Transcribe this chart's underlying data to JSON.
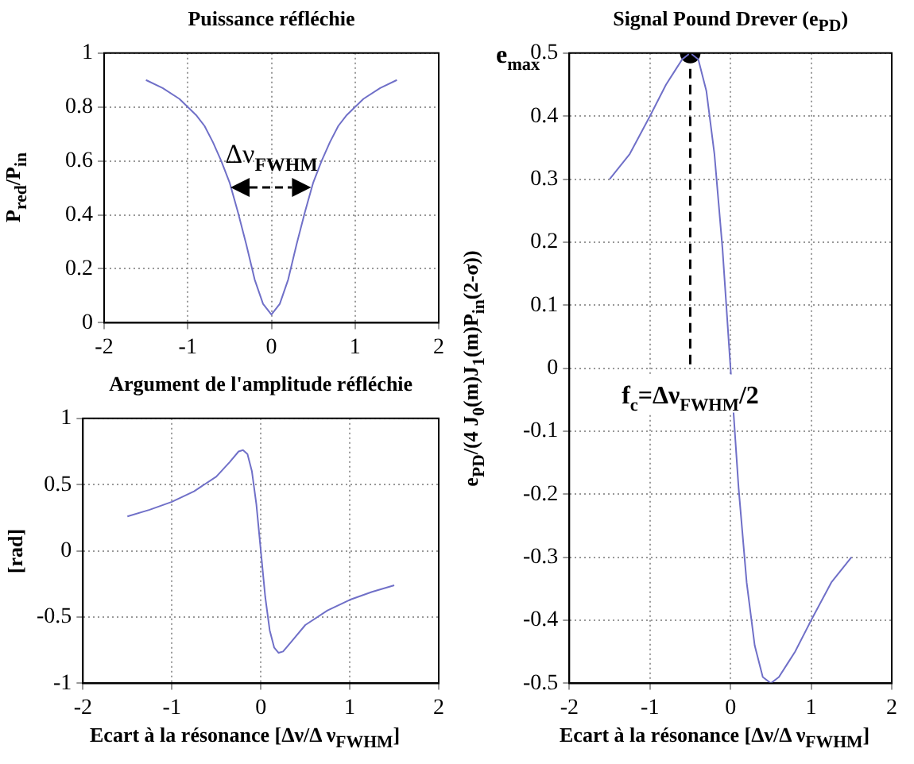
{
  "chart_data": [
    {
      "type": "line",
      "title": "Puissance réfléchie",
      "ylabel": "P$_{red}$/P$_{in}$",
      "x": [
        -1.5,
        -1.3,
        -1.1,
        -0.9,
        -0.8,
        -0.7,
        -0.6,
        -0.5,
        -0.4,
        -0.3,
        -0.2,
        -0.1,
        0,
        0.1,
        0.2,
        0.3,
        0.4,
        0.5,
        0.6,
        0.7,
        0.8,
        0.9,
        1.1,
        1.3,
        1.5
      ],
      "series": [
        {
          "color": "#7070c8",
          "values": [
            0.9,
            0.87,
            0.83,
            0.77,
            0.73,
            0.67,
            0.6,
            0.52,
            0.41,
            0.29,
            0.16,
            0.07,
            0.03,
            0.07,
            0.16,
            0.29,
            0.41,
            0.52,
            0.6,
            0.67,
            0.73,
            0.77,
            0.83,
            0.87,
            0.9
          ]
        }
      ],
      "xlim": [
        -2,
        2
      ],
      "xticks": [
        -2,
        -1,
        0,
        1,
        2
      ],
      "ylim": [
        0,
        1
      ],
      "yticks": [
        0,
        0.2,
        0.4,
        0.6,
        0.8,
        1
      ],
      "grid": true,
      "annotations": [
        "Δν$_{FWHM}$"
      ]
    },
    {
      "type": "line",
      "title": "Argument de l'amplitude réfléchie",
      "xlabel": "Ecart à la résonance [Δν/Δ ν$_{FWHM}$]",
      "ylabel": "[rad]",
      "x": [
        -1.5,
        -1.25,
        -1,
        -0.75,
        -0.5,
        -0.35,
        -0.25,
        -0.2,
        -0.15,
        -0.1,
        -0.05,
        0,
        0.05,
        0.1,
        0.15,
        0.2,
        0.25,
        0.35,
        0.5,
        0.75,
        1,
        1.25,
        1.5
      ],
      "series": [
        {
          "color": "#7070c8",
          "values": [
            0.26,
            0.31,
            0.37,
            0.45,
            0.56,
            0.67,
            0.75,
            0.76,
            0.73,
            0.6,
            0.35,
            0,
            -0.35,
            -0.6,
            -0.73,
            -0.77,
            -0.76,
            -0.68,
            -0.56,
            -0.45,
            -0.37,
            -0.31,
            -0.26
          ]
        }
      ],
      "xlim": [
        -2,
        2
      ],
      "xticks": [
        -2,
        -1,
        0,
        1,
        2
      ],
      "ylim": [
        -1,
        1
      ],
      "yticks": [
        -1,
        -0.5,
        0,
        0.5,
        1
      ],
      "grid": true
    },
    {
      "type": "line",
      "title": "Signal Pound Drever (e$_{PD}$)",
      "xlabel": "Ecart à la résonance [Δν/Δ ν$_{FWHM}$]",
      "ylabel": "e$_{PD}$/(4 J$_{0}$(m)J$_{1}$(m)P$_{in}$(2-σ))",
      "x": [
        -1.5,
        -1.25,
        -1,
        -0.8,
        -0.7,
        -0.6,
        -0.5,
        -0.4,
        -0.3,
        -0.2,
        -0.1,
        0,
        0.1,
        0.2,
        0.3,
        0.4,
        0.5,
        0.6,
        0.7,
        0.8,
        1,
        1.25,
        1.5
      ],
      "series": [
        {
          "color": "#7070c8",
          "values": [
            0.3,
            0.34,
            0.4,
            0.45,
            0.47,
            0.49,
            0.5,
            0.49,
            0.44,
            0.34,
            0.19,
            0,
            -0.19,
            -0.34,
            -0.44,
            -0.49,
            -0.5,
            -0.49,
            -0.47,
            -0.45,
            -0.4,
            -0.34,
            -0.3
          ]
        },
        {
          "type": "scatter",
          "marker": "circle",
          "color": "#000000",
          "x": [
            -0.5
          ],
          "values": [
            0.5
          ]
        }
      ],
      "xlim": [
        -2,
        2
      ],
      "xticks": [
        -2,
        -1,
        0,
        1,
        2
      ],
      "ylim": [
        -0.5,
        0.5
      ],
      "yticks": [
        -0.5,
        -0.4,
        -0.3,
        -0.2,
        -0.1,
        0,
        0.1,
        0.2,
        0.3,
        0.4,
        0.5
      ],
      "grid": true,
      "ref_lines": [
        {
          "axis": "x",
          "value": -0.5,
          "label": "f$_{c}$=Δν$_{FWHM}$/2",
          "line_style": "dashed",
          "color": "#000000"
        }
      ],
      "annotations": [
        "e$_{max}$"
      ]
    }
  ]
}
